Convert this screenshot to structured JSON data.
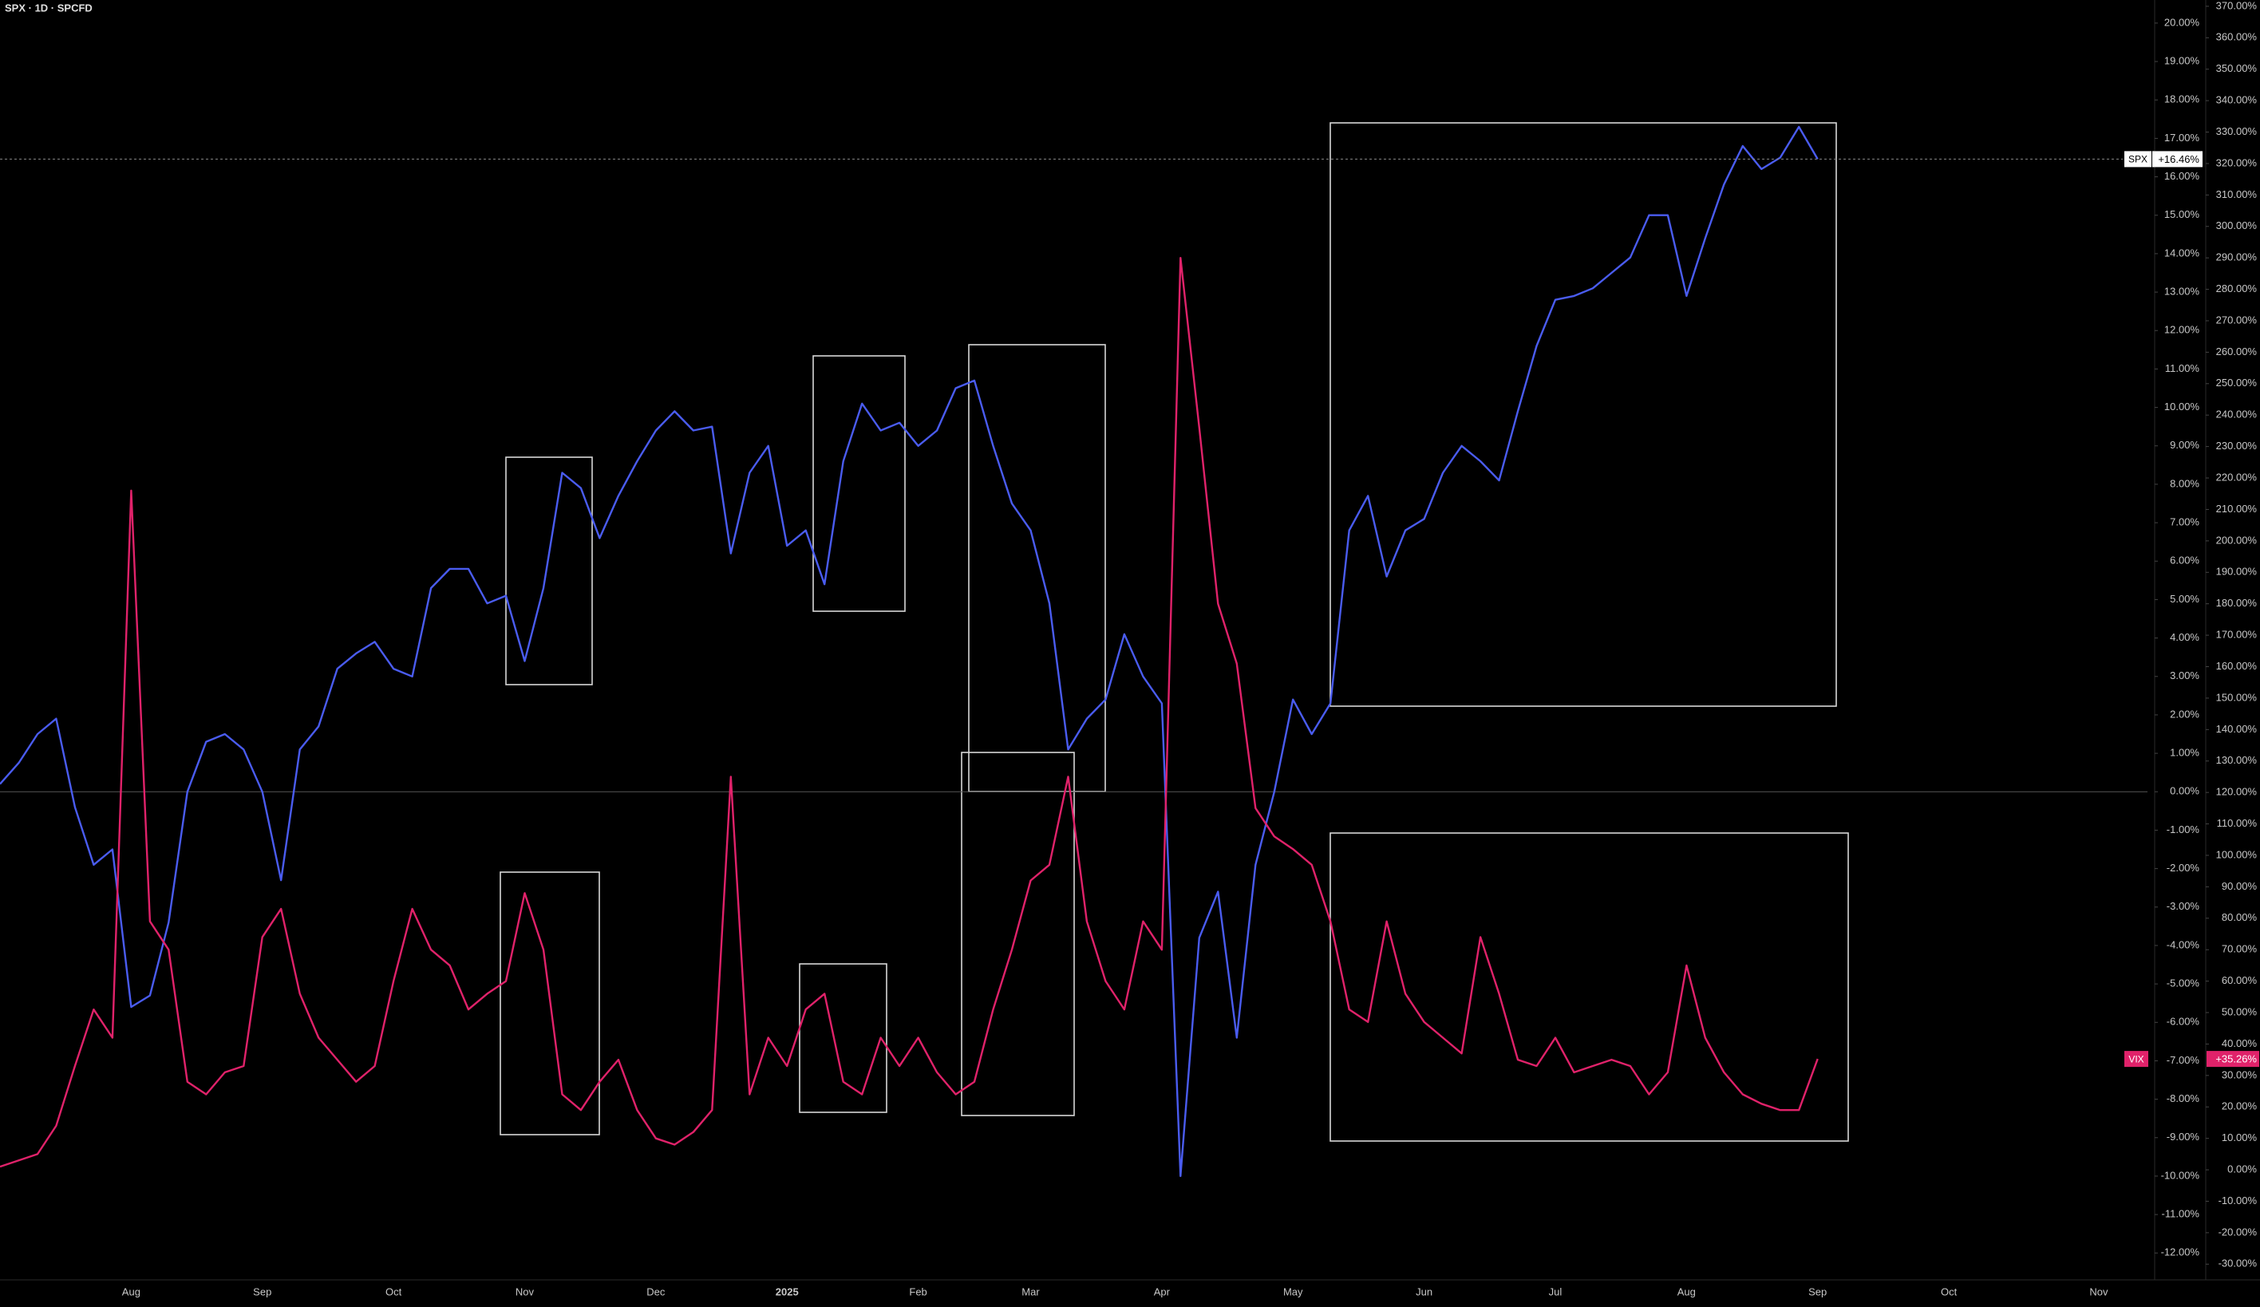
{
  "chart_data": {
    "type": "line",
    "title": "SPX · 1D · SPCFD",
    "categories": [
      null,
      null,
      null,
      null,
      null,
      null,
      null,
      "Aug",
      null,
      null,
      null,
      null,
      null,
      null,
      "Sep",
      null,
      null,
      null,
      null,
      null,
      null,
      "Oct",
      null,
      null,
      null,
      null,
      null,
      null,
      "Nov",
      null,
      null,
      null,
      null,
      null,
      null,
      "Dec",
      null,
      null,
      null,
      null,
      null,
      null,
      "2025",
      null,
      null,
      null,
      null,
      null,
      null,
      "Feb",
      null,
      null,
      null,
      null,
      null,
      "Mar",
      null,
      null,
      null,
      null,
      null,
      null,
      "Apr",
      null,
      null,
      null,
      null,
      null,
      null,
      "May",
      null,
      null,
      null,
      null,
      null,
      null,
      "Jun",
      null,
      null,
      null,
      null,
      null,
      null,
      "Jul",
      null,
      null,
      null,
      null,
      null,
      null,
      "Aug",
      null,
      null,
      null,
      null,
      null,
      null,
      "Sep",
      null,
      null,
      null,
      null,
      null,
      null,
      "Oct",
      null,
      null,
      null,
      null,
      null,
      null,
      null,
      "Nov",
      null,
      null
    ],
    "series": [
      {
        "name": "SPX",
        "color": "#4a5cf0",
        "last_label": "+16.46%",
        "values": [
          0.2,
          0.75,
          1.5,
          1.9,
          -0.4,
          -1.9,
          -1.5,
          -5.6,
          -5.3,
          -3.4,
          0,
          1.3,
          1.5,
          1.1,
          0,
          -2.3,
          1.1,
          1.7,
          3.2,
          3.6,
          3.9,
          3.2,
          3.0,
          5.3,
          5.8,
          5.8,
          4.9,
          5.1,
          3.4,
          5.3,
          8.3,
          7.9,
          6.6,
          7.7,
          8.6,
          9.4,
          9.9,
          9.4,
          9.5,
          6.2,
          8.3,
          9.0,
          6.4,
          6.8,
          5.4,
          8.6,
          10.1,
          9.4,
          9.6,
          9.0,
          9.4,
          10.5,
          10.7,
          9.0,
          7.5,
          6.8,
          4.9,
          1.1,
          1.9,
          2.4,
          4.1,
          3.0,
          2.3,
          -10,
          -3.8,
          -2.6,
          -6.4,
          -1.9,
          0,
          2.4,
          1.5,
          2.3,
          6.8,
          7.7,
          5.6,
          6.8,
          7.1,
          8.3,
          9.0,
          8.6,
          8.1,
          9.9,
          11.6,
          12.8,
          12.9,
          13.1,
          13.5,
          13.9,
          15.0,
          15.0,
          12.9,
          14.4,
          15.8,
          16.8,
          16.2,
          16.5,
          17.3,
          16.46,
          null,
          null,
          null,
          null,
          null,
          null,
          null,
          null,
          null,
          null,
          null,
          null,
          null,
          null,
          null,
          null,
          null
        ]
      },
      {
        "name": "VIX",
        "color": "#e0226a",
        "axis": "y2",
        "last_label": "+35.26%",
        "values": [
          1,
          3,
          5,
          14,
          33,
          51,
          42,
          216,
          79,
          70,
          28,
          24,
          31,
          33,
          74,
          83,
          56,
          42,
          35,
          28,
          33,
          60,
          83,
          70,
          65,
          51,
          56,
          60,
          88,
          70,
          24,
          19,
          28,
          35,
          19,
          10,
          8,
          12,
          19,
          125,
          24,
          42,
          33,
          51,
          56,
          28,
          24,
          42,
          33,
          42,
          31,
          24,
          28,
          51,
          70,
          92,
          97,
          125,
          79,
          60,
          51,
          79,
          70,
          290,
          236,
          180,
          161,
          115,
          106,
          102,
          97,
          79,
          51,
          47,
          79,
          56,
          47,
          42,
          37,
          74,
          56,
          35,
          33,
          42,
          31,
          33,
          35,
          33,
          24,
          31,
          65,
          42,
          31,
          24,
          21,
          19,
          19,
          35.26,
          null,
          null,
          null,
          null,
          null,
          null,
          null,
          null,
          null,
          null,
          null,
          null,
          null,
          null,
          null,
          null,
          null
        ]
      }
    ],
    "ylim": [
      -12.7,
      20.6
    ],
    "yticks": [
      {
        "value": 20,
        "label": "20.00%"
      },
      {
        "value": 19,
        "label": "19.00%"
      },
      {
        "value": 18,
        "label": "18.00%"
      },
      {
        "value": 17,
        "label": "17.00%"
      },
      {
        "value": 16,
        "label": "16.00%"
      },
      {
        "value": 15,
        "label": "15.00%"
      },
      {
        "value": 14,
        "label": "14.00%"
      },
      {
        "value": 13,
        "label": "13.00%"
      },
      {
        "value": 12,
        "label": "12.00%"
      },
      {
        "value": 11,
        "label": "11.00%"
      },
      {
        "value": 10,
        "label": "10.00%"
      },
      {
        "value": 9,
        "label": "9.00%"
      },
      {
        "value": 8,
        "label": "8.00%"
      },
      {
        "value": 7,
        "label": "7.00%"
      },
      {
        "value": 6,
        "label": "6.00%"
      },
      {
        "value": 5,
        "label": "5.00%"
      },
      {
        "value": 4,
        "label": "4.00%"
      },
      {
        "value": 3,
        "label": "3.00%"
      },
      {
        "value": 2,
        "label": "2.00%"
      },
      {
        "value": 1,
        "label": "1.00%"
      },
      {
        "value": 0,
        "label": "0.00%"
      },
      {
        "value": -1,
        "label": "-1.00%"
      },
      {
        "value": -2,
        "label": "-2.00%"
      },
      {
        "value": -3,
        "label": "-3.00%"
      },
      {
        "value": -4,
        "label": "-4.00%"
      },
      {
        "value": -5,
        "label": "-5.00%"
      },
      {
        "value": -6,
        "label": "-6.00%"
      },
      {
        "value": -7,
        "label": "-7.00%"
      },
      {
        "value": -8,
        "label": "-8.00%"
      },
      {
        "value": -9,
        "label": "-9.00%"
      },
      {
        "value": -10,
        "label": "-10.00%"
      },
      {
        "value": -11,
        "label": "-11.00%"
      },
      {
        "value": -12,
        "label": "-12.00%"
      }
    ],
    "y2lim": [
      -35,
      372
    ],
    "y2ticks": [
      {
        "value": 370,
        "label": "370.00%"
      },
      {
        "value": 360,
        "label": "360.00%"
      },
      {
        "value": 350,
        "label": "350.00%"
      },
      {
        "value": 340,
        "label": "340.00%"
      },
      {
        "value": 330,
        "label": "330.00%"
      },
      {
        "value": 320,
        "label": "320.00%"
      },
      {
        "value": 310,
        "label": "310.00%"
      },
      {
        "value": 300,
        "label": "300.00%"
      },
      {
        "value": 290,
        "label": "290.00%"
      },
      {
        "value": 280,
        "label": "280.00%"
      },
      {
        "value": 270,
        "label": "270.00%"
      },
      {
        "value": 260,
        "label": "260.00%"
      },
      {
        "value": 250,
        "label": "250.00%"
      },
      {
        "value": 240,
        "label": "240.00%"
      },
      {
        "value": 230,
        "label": "230.00%"
      },
      {
        "value": 220,
        "label": "220.00%"
      },
      {
        "value": 210,
        "label": "210.00%"
      },
      {
        "value": 200,
        "label": "200.00%"
      },
      {
        "value": 190,
        "label": "190.00%"
      },
      {
        "value": 180,
        "label": "180.00%"
      },
      {
        "value": 170,
        "label": "170.00%"
      },
      {
        "value": 160,
        "label": "160.00%"
      },
      {
        "value": 150,
        "label": "150.00%"
      },
      {
        "value": 140,
        "label": "140.00%"
      },
      {
        "value": 130,
        "label": "130.00%"
      },
      {
        "value": 120,
        "label": "120.00%"
      },
      {
        "value": 110,
        "label": "110.00%"
      },
      {
        "value": 100,
        "label": "100.00%"
      },
      {
        "value": 90,
        "label": "90.00%"
      },
      {
        "value": 80,
        "label": "80.00%"
      },
      {
        "value": 70,
        "label": "70.00%"
      },
      {
        "value": 60,
        "label": "60.00%"
      },
      {
        "value": 50,
        "label": "50.00%"
      },
      {
        "value": 40,
        "label": "40.00%"
      },
      {
        "value": 30,
        "label": "30.00%"
      },
      {
        "value": 20,
        "label": "20.00%"
      },
      {
        "value": 10,
        "label": "10.00%"
      },
      {
        "value": 0,
        "label": "0.00%"
      },
      {
        "value": -10,
        "label": "-10.00%"
      },
      {
        "value": -20,
        "label": "-20.00%"
      },
      {
        "value": -30,
        "label": "-30.00%"
      }
    ],
    "grid": false
  }
}
